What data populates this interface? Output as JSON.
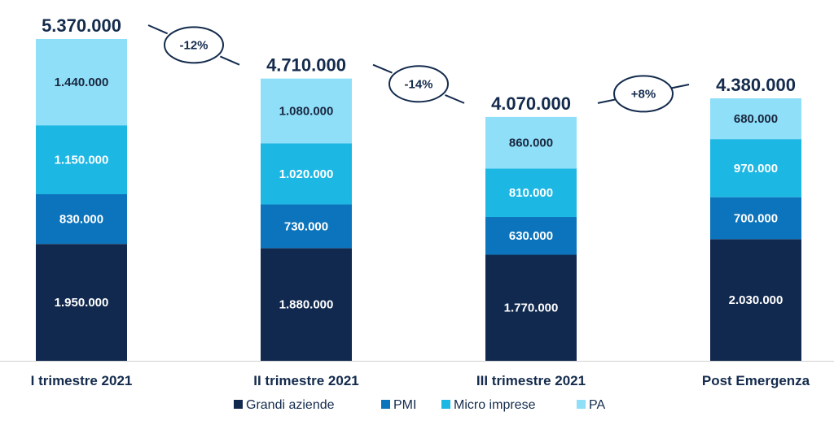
{
  "chart_data": {
    "type": "bar",
    "stacked": true,
    "categories": [
      "I trimestre 2021",
      "II trimestre 2021",
      "III trimestre 2021",
      "Post Emergenza"
    ],
    "series": [
      {
        "name": "Grandi aziende",
        "color": "#11294f",
        "values": [
          1950000,
          1880000,
          1770000,
          2030000
        ],
        "labels": [
          "1.950.000",
          "1.880.000",
          "1.770.000",
          "2.030.000"
        ]
      },
      {
        "name": "PMI",
        "color": "#0c74bc",
        "values": [
          830000,
          730000,
          630000,
          700000
        ],
        "labels": [
          "830.000",
          "730.000",
          "630.000",
          "700.000"
        ]
      },
      {
        "name": "Micro imprese",
        "color": "#1db7e4",
        "values": [
          1150000,
          1020000,
          810000,
          970000
        ],
        "labels": [
          "1.150.000",
          "1.020.000",
          "810.000",
          "970.000"
        ]
      },
      {
        "name": "PA",
        "color": "#8fdff8",
        "values": [
          1440000,
          1080000,
          860000,
          680000
        ],
        "labels": [
          "1.440.000",
          "1.080.000",
          "860.000",
          "680.000"
        ]
      }
    ],
    "totals": [
      "5.370.000",
      "4.710.000",
      "4.070.000",
      "4.380.000"
    ],
    "changes": [
      "-12%",
      "-14%",
      "+8%"
    ],
    "legend_position": "bottom",
    "grid": false
  }
}
